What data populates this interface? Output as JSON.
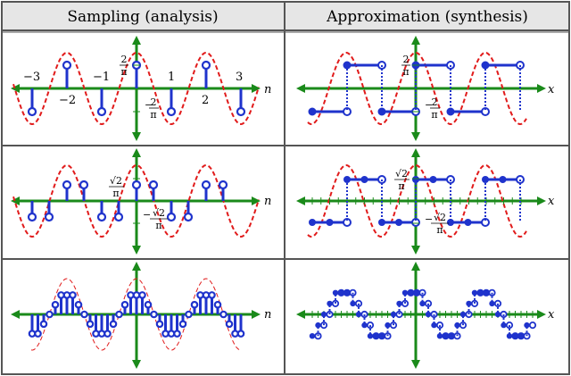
{
  "headers": {
    "left": "Sampling (analysis)",
    "right": "Approximation (synthesis)"
  },
  "colors": {
    "axis": "#1a8a1a",
    "stem": "#1f33cc",
    "curve": "#e11b1b",
    "border": "#555555",
    "header_bg": "#e6e6e6"
  },
  "axis_names": {
    "left": "n",
    "right": "x"
  },
  "panels": [
    {
      "row": 1,
      "sampling": {
        "n_labels": [
          "−3",
          "−2",
          "−1",
          "1",
          "2",
          "3"
        ],
        "pos_label": {
          "num": "2",
          "den": "π"
        },
        "neg_label": {
          "sign": "−",
          "num": "2",
          "den": "π"
        }
      },
      "approx": {
        "pos_label": {
          "num": "2",
          "den": "π"
        },
        "neg_label": {
          "sign": "−",
          "num": "2",
          "den": "π"
        }
      }
    },
    {
      "row": 2,
      "sampling": {
        "pos_label": {
          "num": "√2",
          "den": "π"
        },
        "neg_label": {
          "sign": "−",
          "num": "√2",
          "den": "π"
        }
      },
      "approx": {
        "pos_label": {
          "num": "√2",
          "den": "π"
        },
        "neg_label": {
          "sign": "−",
          "num": "√2",
          "den": "π"
        }
      }
    },
    {
      "row": 3,
      "sampling": {},
      "approx": {}
    }
  ]
}
